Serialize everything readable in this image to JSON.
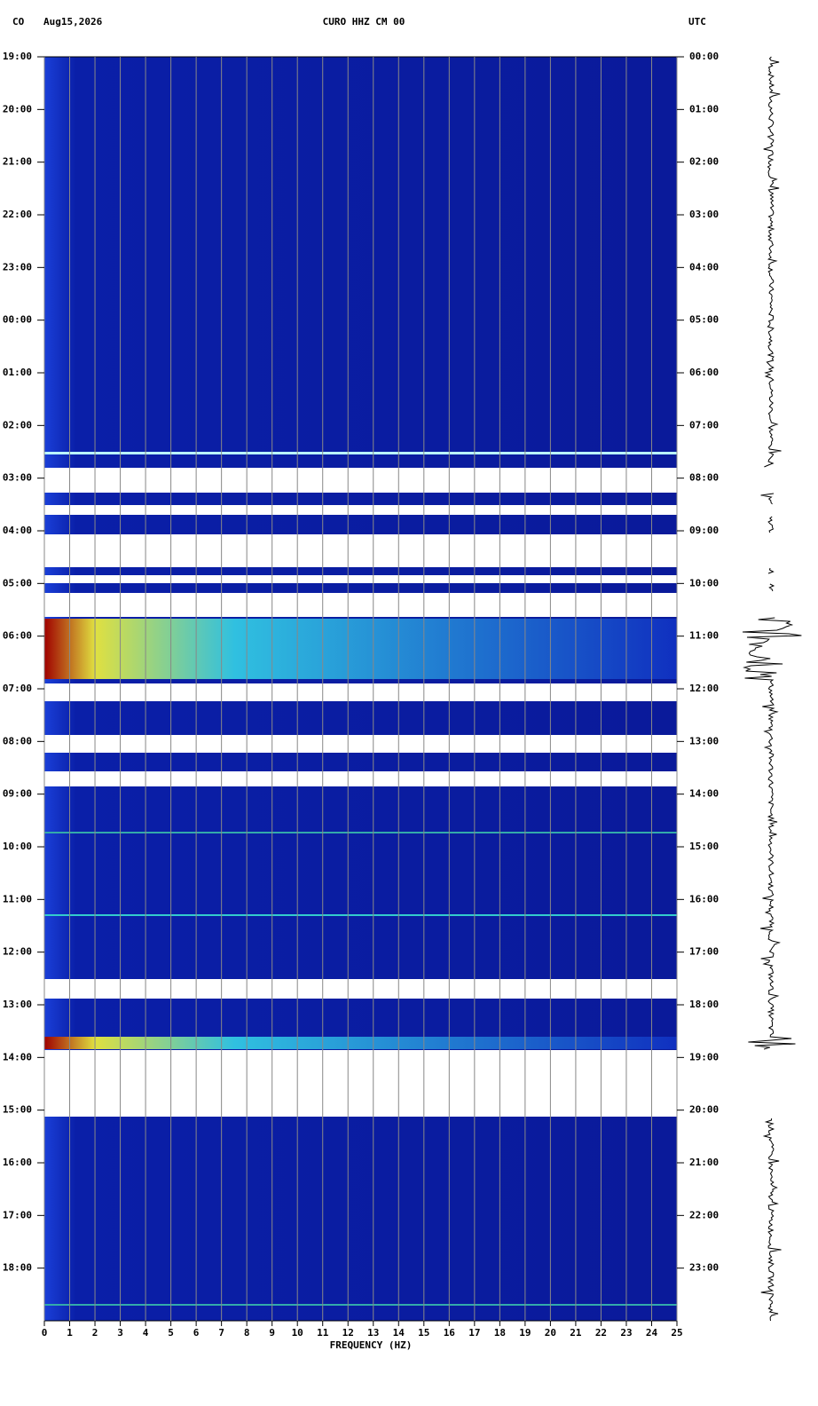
{
  "chart_data": {
    "type": "spectrogram",
    "network": "CO",
    "date": "Aug15,2026",
    "title": "CURO HHZ CM 00",
    "timezone": "UTC",
    "xlabel": "FREQUENCY (HZ)",
    "xlim": [
      0,
      25
    ],
    "xticks": [
      0,
      1,
      2,
      3,
      4,
      5,
      6,
      7,
      8,
      9,
      10,
      11,
      12,
      13,
      14,
      15,
      16,
      17,
      18,
      19,
      20,
      21,
      22,
      23,
      24,
      25
    ],
    "grid": true,
    "ylim": [
      0,
      24
    ],
    "yticks": [
      {
        "value": 0,
        "label": "19:00"
      },
      {
        "value": 1,
        "label": "20:00"
      },
      {
        "value": 2,
        "label": "21:00"
      },
      {
        "value": 3,
        "label": "22:00"
      },
      {
        "value": 4,
        "label": "23:00"
      },
      {
        "value": 5,
        "label": "00:00"
      },
      {
        "value": 6,
        "label": "01:00"
      },
      {
        "value": 7,
        "label": "02:00"
      },
      {
        "value": 8,
        "label": "03:00"
      },
      {
        "value": 9,
        "label": "04:00"
      },
      {
        "value": 10,
        "label": "05:00"
      },
      {
        "value": 11,
        "label": "06:00"
      },
      {
        "value": 12,
        "label": "07:00"
      },
      {
        "value": 13,
        "label": "08:00"
      },
      {
        "value": 14,
        "label": "09:00"
      },
      {
        "value": 15,
        "label": "10:00"
      },
      {
        "value": 16,
        "label": "11:00"
      },
      {
        "value": 17,
        "label": "12:00"
      },
      {
        "value": 18,
        "label": "13:00"
      },
      {
        "value": 19,
        "label": "14:00"
      },
      {
        "value": 20,
        "label": "15:00"
      },
      {
        "value": 21,
        "label": "16:00"
      },
      {
        "value": 22,
        "label": "17:00"
      },
      {
        "value": 23,
        "label": "18:00"
      }
    ],
    "y2lim": [
      0,
      24
    ],
    "y2ticks": [
      {
        "value": 0,
        "label": "00:00"
      },
      {
        "value": 1,
        "label": "01:00"
      },
      {
        "value": 2,
        "label": "02:00"
      },
      {
        "value": 3,
        "label": "03:00"
      },
      {
        "value": 4,
        "label": "04:00"
      },
      {
        "value": 5,
        "label": "05:00"
      },
      {
        "value": 6,
        "label": "06:00"
      },
      {
        "value": 7,
        "label": "07:00"
      },
      {
        "value": 8,
        "label": "08:00"
      },
      {
        "value": 9,
        "label": "09:00"
      },
      {
        "value": 10,
        "label": "10:00"
      },
      {
        "value": 11,
        "label": "11:00"
      },
      {
        "value": 12,
        "label": "12:00"
      },
      {
        "value": 13,
        "label": "13:00"
      },
      {
        "value": 14,
        "label": "14:00"
      },
      {
        "value": 15,
        "label": "15:00"
      },
      {
        "value": 16,
        "label": "16:00"
      },
      {
        "value": 17,
        "label": "17:00"
      },
      {
        "value": 18,
        "label": "18:00"
      },
      {
        "value": 19,
        "label": "19:00"
      },
      {
        "value": 20,
        "label": "20:00"
      },
      {
        "value": 21,
        "label": "21:00"
      },
      {
        "value": 22,
        "label": "22:00"
      },
      {
        "value": 23,
        "label": "23:00"
      }
    ]
  }
}
